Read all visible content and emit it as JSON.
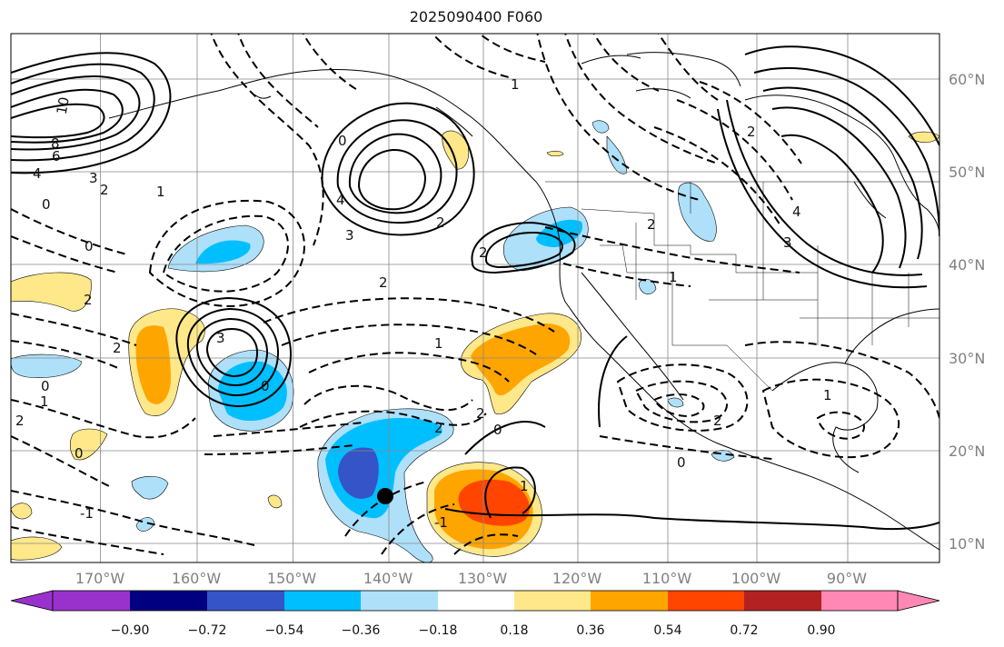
{
  "title": "2025090400 F060",
  "longitude_ticks": [
    "170°W",
    "160°W",
    "150°W",
    "140°W",
    "130°W",
    "120°W",
    "110°W",
    "100°W",
    "90°W"
  ],
  "latitude_ticks": [
    "60°N",
    "50°N",
    "40°N",
    "30°N",
    "20°N",
    "10°N"
  ],
  "colorbar": {
    "tick_labels": [
      "−0.90",
      "−0.72",
      "−0.54",
      "−0.36",
      "−0.18",
      "0.18",
      "0.36",
      "0.54",
      "0.72",
      "0.90"
    ],
    "colors": [
      "#9932cc",
      "#000080",
      "#3454c8",
      "#00bfff",
      "#aee0fa",
      "#ffffff",
      "#ffe88a",
      "#ffa500",
      "#ff4500",
      "#b22222",
      "#ff88b4"
    ]
  },
  "fill_colors": {
    "neg_strong": "#3454c8",
    "neg_mid": "#00bfff",
    "neg_light": "#aee0fa",
    "pos_light": "#ffe88a",
    "pos_mid": "#ffa500",
    "pos_strong": "#ff4500"
  },
  "contour_labels": [
    "10",
    "8",
    "6",
    "4",
    "3",
    "2",
    "1",
    "0",
    "0",
    "2",
    "0",
    "2",
    "3",
    "1",
    "0",
    "-1",
    "2",
    "0",
    "4",
    "3",
    "2",
    "0",
    "2",
    "2",
    "2",
    "1",
    "-1",
    "1",
    "0",
    "2",
    "1",
    "1",
    "2",
    "0",
    "4",
    "3",
    "2",
    "2",
    "1"
  ],
  "marker": "storm-position-dot"
}
